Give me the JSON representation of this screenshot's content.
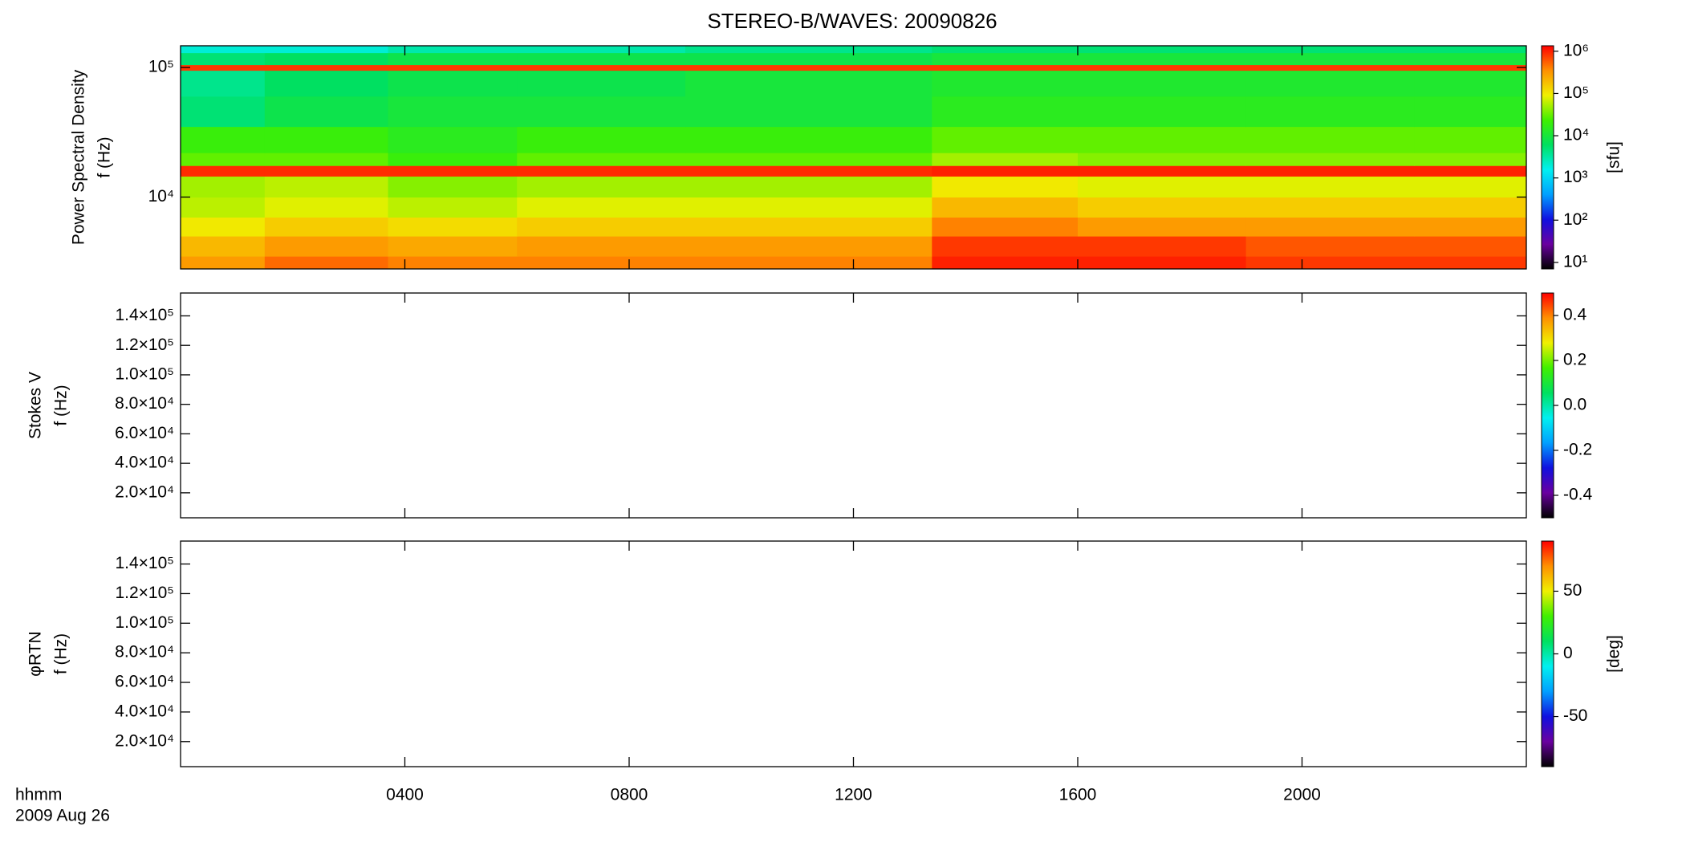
{
  "title": "STEREO-B/WAVES: 20090826",
  "chart_data": [
    {
      "type": "heatmap",
      "ylabel": [
        "Power Spectral Density",
        "f (Hz)"
      ],
      "ylog": true,
      "ylim": [
        2790,
        147000
      ],
      "yticks": [
        {
          "value": 10000,
          "label": "10⁴"
        },
        {
          "value": 100000,
          "label": "10⁵"
        }
      ],
      "x": [
        0,
        1.5,
        3.7,
        6,
        9,
        13.4,
        16,
        19,
        22,
        24
      ],
      "y": [
        2790,
        3500,
        5000,
        7000,
        10000,
        14500,
        17500,
        22000,
        35000,
        60000,
        95000,
        105000,
        130000,
        147000
      ],
      "z": [
        [
          300000,
          500000,
          400000,
          400000,
          400000,
          1000000,
          1000000,
          800000,
          800000
        ],
        [
          200000,
          300000,
          250000,
          300000,
          300000,
          800000,
          800000,
          600000,
          600000
        ],
        [
          100000,
          150000,
          120000,
          150000,
          150000,
          400000,
          300000,
          300000,
          300000
        ],
        [
          60000,
          80000,
          60000,
          80000,
          80000,
          200000,
          150000,
          150000,
          150000
        ],
        [
          50000,
          60000,
          40000,
          50000,
          50000,
          100000,
          80000,
          80000,
          80000
        ],
        [
          900000,
          900000,
          900000,
          900000,
          900000,
          1000000,
          1000000,
          1000000,
          1000000
        ],
        [
          30000,
          30000,
          20000,
          30000,
          30000,
          50000,
          40000,
          40000,
          40000
        ],
        [
          20000,
          20000,
          15000,
          20000,
          20000,
          30000,
          30000,
          30000,
          30000
        ],
        [
          5000,
          8000,
          10000,
          10000,
          10000,
          15000,
          15000,
          15000,
          15000
        ],
        [
          4000,
          6000,
          8000,
          8000,
          10000,
          12000,
          12000,
          12000,
          12000
        ],
        [
          800000,
          800000,
          800000,
          800000,
          800000,
          800000,
          800000,
          800000,
          800000
        ],
        [
          5000,
          6000,
          8000,
          8000,
          8000,
          10000,
          10000,
          10000,
          10000
        ],
        [
          2000,
          2000,
          3000,
          3000,
          4000,
          5000,
          5000,
          5000,
          5000
        ]
      ],
      "zlog": true,
      "zlim": [
        7,
        1350000
      ],
      "zticks": [
        {
          "value": 10,
          "label": "10¹"
        },
        {
          "value": 100,
          "label": "10²"
        },
        {
          "value": 1000,
          "label": "10³"
        },
        {
          "value": 10000,
          "label": "10⁴"
        },
        {
          "value": 100000,
          "label": "10⁵"
        },
        {
          "value": 1000000,
          "label": "10⁶"
        }
      ],
      "zlabel": "[sfu]",
      "colormap": [
        "#000000",
        "#6a00a0",
        "#1010e0",
        "#00a0ff",
        "#00f0f0",
        "#00e060",
        "#40f000",
        "#f0f000",
        "#ff9000",
        "#ff0000"
      ]
    },
    {
      "type": "heatmap",
      "ylabel": [
        "Stokes V",
        "f (Hz)"
      ],
      "ylim": [
        3060,
        155500
      ],
      "yticks": [
        {
          "value": 20000,
          "label": "2.0×10⁴"
        },
        {
          "value": 40000,
          "label": "4.0×10⁴"
        },
        {
          "value": 60000,
          "label": "6.0×10⁴"
        },
        {
          "value": 80000,
          "label": "8.0×10⁴"
        },
        {
          "value": 100000,
          "label": "1.0×10⁵"
        },
        {
          "value": 120000,
          "label": "1.2×10⁵"
        },
        {
          "value": 140000,
          "label": "1.4×10⁵"
        }
      ],
      "zlim": [
        -0.5,
        0.5
      ],
      "zticks": [
        -0.4,
        -0.2,
        {
          "value": 0,
          "label": "0.0"
        },
        0.2,
        0.4
      ],
      "colormap": [
        "#000000",
        "#6a00a0",
        "#1010e0",
        "#00a0ff",
        "#00f0f0",
        "#00e060",
        "#40f000",
        "#f0f000",
        "#ff9000",
        "#ff0000"
      ]
    },
    {
      "type": "heatmap",
      "ylabel": [
        "φRTN",
        "f (Hz)"
      ],
      "ylim": [
        3060,
        155500
      ],
      "yticks": [
        {
          "value": 20000,
          "label": "2.0×10⁴"
        },
        {
          "value": 40000,
          "label": "4.0×10⁴"
        },
        {
          "value": 60000,
          "label": "6.0×10⁴"
        },
        {
          "value": 80000,
          "label": "8.0×10⁴"
        },
        {
          "value": 100000,
          "label": "1.0×10⁵"
        },
        {
          "value": 120000,
          "label": "1.2×10⁵"
        },
        {
          "value": 140000,
          "label": "1.4×10⁵"
        }
      ],
      "zlim": [
        -90,
        90
      ],
      "zticks": [
        -50,
        0,
        50
      ],
      "zlabel": "[deg]",
      "colormap": [
        "#000000",
        "#6a00a0",
        "#1010e0",
        "#00a0ff",
        "#00f0f0",
        "#00e060",
        "#40f000",
        "#f0f000",
        "#ff9000",
        "#ff0000"
      ],
      "xlim": [
        0,
        24
      ],
      "xticks": [
        {
          "value": 4,
          "label": "0400"
        },
        {
          "value": 8,
          "label": "0800"
        },
        {
          "value": 12,
          "label": "1200"
        },
        {
          "value": 16,
          "label": "1600"
        },
        {
          "value": 20,
          "label": "2000"
        }
      ],
      "xlabel": [
        "hhmm",
        "2009 Aug 26"
      ]
    }
  ]
}
